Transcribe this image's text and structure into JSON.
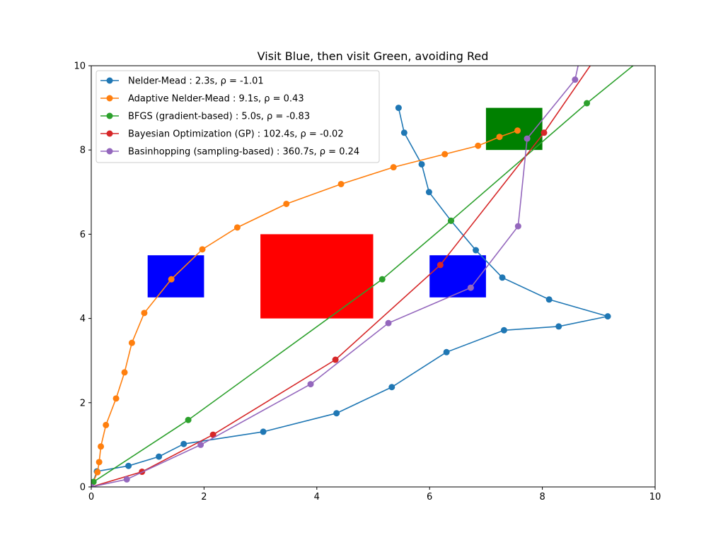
{
  "chart_data": {
    "type": "line",
    "title": "Visit Blue, then visit Green, avoiding Red",
    "xlabel": "",
    "ylabel": "",
    "xlim": [
      0,
      10
    ],
    "ylim": [
      0,
      10
    ],
    "x_ticks": [
      0,
      2,
      4,
      6,
      8,
      10
    ],
    "y_ticks": [
      0,
      2,
      4,
      6,
      8,
      10
    ],
    "grid": false,
    "legend_position": "top-left",
    "regions": [
      {
        "label": "Blue",
        "color": "#0000ff",
        "x": [
          1,
          2
        ],
        "y": [
          4.5,
          5.5
        ]
      },
      {
        "label": "Blue",
        "color": "#0000ff",
        "x": [
          6,
          7
        ],
        "y": [
          4.5,
          5.5
        ]
      },
      {
        "label": "Red",
        "color": "#ff0000",
        "x": [
          3,
          5
        ],
        "y": [
          4,
          6
        ]
      },
      {
        "label": "Green",
        "color": "#008000",
        "x": [
          7,
          8
        ],
        "y": [
          8,
          9
        ]
      }
    ],
    "series": [
      {
        "name": "Nelder-Mead : 2.3s, ρ = -1.01",
        "color": "#1f77b4",
        "points": [
          [
            0,
            0
          ],
          [
            0.1,
            0.37
          ],
          [
            0.66,
            0.5
          ],
          [
            1.2,
            0.72
          ],
          [
            1.64,
            1.02
          ],
          [
            3.05,
            1.31
          ],
          [
            4.35,
            1.75
          ],
          [
            5.33,
            2.37
          ],
          [
            6.3,
            3.2
          ],
          [
            7.32,
            3.72
          ],
          [
            8.29,
            3.81
          ],
          [
            9.16,
            4.05
          ],
          [
            8.12,
            4.45
          ],
          [
            7.29,
            4.97
          ],
          [
            6.82,
            5.62
          ],
          [
            6.38,
            6.32
          ],
          [
            5.99,
            7.0
          ],
          [
            5.86,
            7.66
          ],
          [
            5.55,
            8.41
          ],
          [
            5.45,
            9.0
          ]
        ]
      },
      {
        "name": "Adaptive Nelder-Mead : 9.1s, ρ = 0.43",
        "color": "#ff7f0e",
        "points": [
          [
            0,
            0
          ],
          [
            0.11,
            0.35
          ],
          [
            0.14,
            0.59
          ],
          [
            0.17,
            0.96
          ],
          [
            0.26,
            1.47
          ],
          [
            0.44,
            2.1
          ],
          [
            0.59,
            2.72
          ],
          [
            0.72,
            3.42
          ],
          [
            0.94,
            4.13
          ],
          [
            1.42,
            4.93
          ],
          [
            1.97,
            5.64
          ],
          [
            2.59,
            6.16
          ],
          [
            3.46,
            6.72
          ],
          [
            4.43,
            7.19
          ],
          [
            5.36,
            7.59
          ],
          [
            6.27,
            7.9
          ],
          [
            6.86,
            8.1
          ],
          [
            7.24,
            8.31
          ],
          [
            7.56,
            8.46
          ]
        ]
      },
      {
        "name": "BFGS (gradient-based) : 5.0s, ρ = -0.83",
        "color": "#2ca02c",
        "points": [
          [
            0,
            0
          ],
          [
            0.04,
            0.12
          ],
          [
            1.72,
            1.59
          ],
          [
            5.16,
            4.93
          ],
          [
            6.38,
            6.32
          ],
          [
            8.79,
            9.11
          ],
          [
            9.7,
            10.1
          ]
        ]
      },
      {
        "name": "Bayesian Optimization (GP) : 102.4s, ρ = -0.02",
        "color": "#d62728",
        "points": [
          [
            0,
            0
          ],
          [
            0.9,
            0.36
          ],
          [
            2.16,
            1.24
          ],
          [
            4.33,
            3.02
          ],
          [
            6.19,
            5.27
          ],
          [
            8.03,
            8.41
          ],
          [
            8.9,
            10.1
          ]
        ]
      },
      {
        "name": "Basinhopping (sampling-based) : 360.7s, ρ = 0.24",
        "color": "#9467bd",
        "points": [
          [
            0,
            0
          ],
          [
            0.63,
            0.18
          ],
          [
            1.94,
            1.0
          ],
          [
            3.89,
            2.44
          ],
          [
            5.27,
            3.89
          ],
          [
            6.73,
            4.73
          ],
          [
            7.57,
            6.19
          ],
          [
            7.73,
            8.27
          ],
          [
            8.58,
            9.67
          ],
          [
            8.65,
            10.1
          ]
        ]
      }
    ]
  }
}
